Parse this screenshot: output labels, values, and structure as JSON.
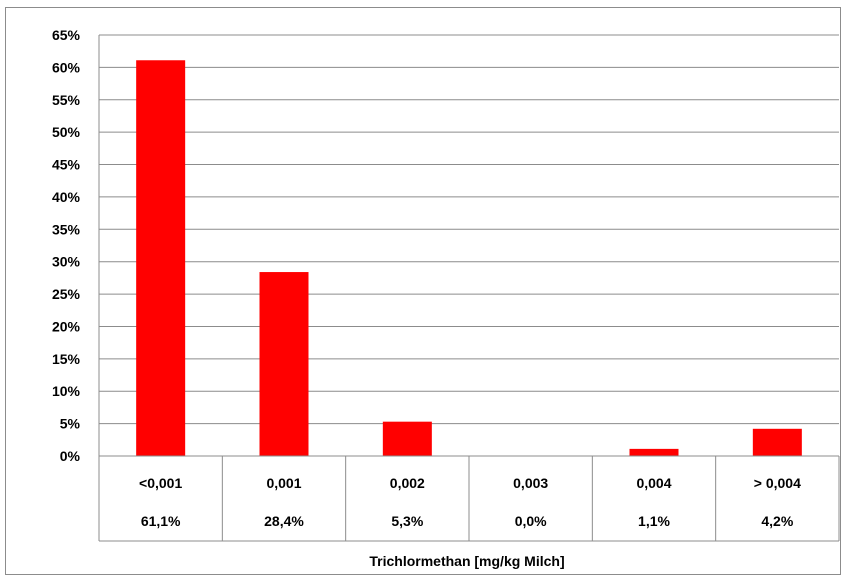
{
  "chart_data": {
    "type": "bar",
    "xlabel": "Trichlormethan [mg/kg Milch]",
    "ylabel": "",
    "ylim": [
      0,
      65
    ],
    "y_ticks": [
      "0%",
      "5%",
      "10%",
      "15%",
      "20%",
      "25%",
      "30%",
      "35%",
      "40%",
      "45%",
      "50%",
      "55%",
      "60%",
      "65%"
    ],
    "categories": [
      "<0,001",
      "0,001",
      "0,002",
      "0,003",
      "0,004",
      "> 0,004"
    ],
    "values": [
      61.1,
      28.4,
      5.3,
      0.0,
      1.1,
      4.2
    ],
    "value_labels": [
      "61,1%",
      "28,4%",
      "5,3%",
      "0,0%",
      "1,1%",
      "4,2%"
    ],
    "grid": true,
    "legend": "none",
    "bar_color": "#ff0000"
  }
}
